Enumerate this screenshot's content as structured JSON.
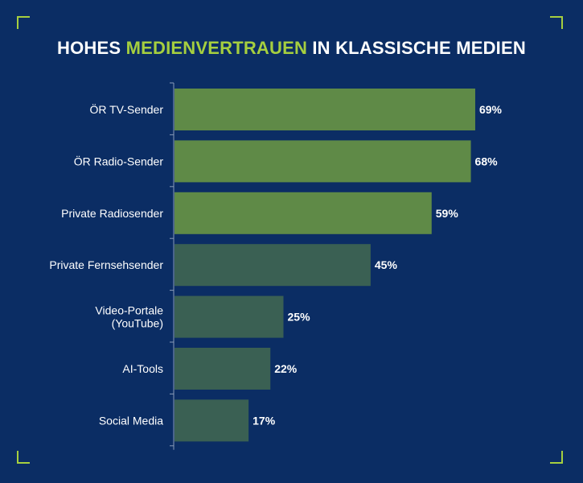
{
  "title": {
    "part1": "HOHES ",
    "highlight": "MEDIENVERTRAUEN",
    "part2": " IN KLASSISCHE MEDIEN"
  },
  "colors": {
    "background": "#0b2d64",
    "accent": "#a6cf3f",
    "bar_light": "#5f8a47",
    "bar_dark": "#3a6053"
  },
  "chart_data": {
    "type": "bar",
    "orientation": "horizontal",
    "categories": [
      "ÖR TV-Sender",
      "ÖR Radio-Sender",
      "Private Radiosender",
      "Private Fernsehsender",
      "Video-Portale (YouTube)",
      "AI-Tools",
      "Social Media"
    ],
    "values": [
      69,
      68,
      59,
      45,
      25,
      22,
      17
    ],
    "value_labels": [
      "69%",
      "68%",
      "59%",
      "45%",
      "25%",
      "22%",
      "17%"
    ],
    "bar_color_groups": [
      "light",
      "light",
      "light",
      "dark",
      "dark",
      "dark",
      "dark"
    ],
    "xlim": [
      0,
      100
    ]
  }
}
